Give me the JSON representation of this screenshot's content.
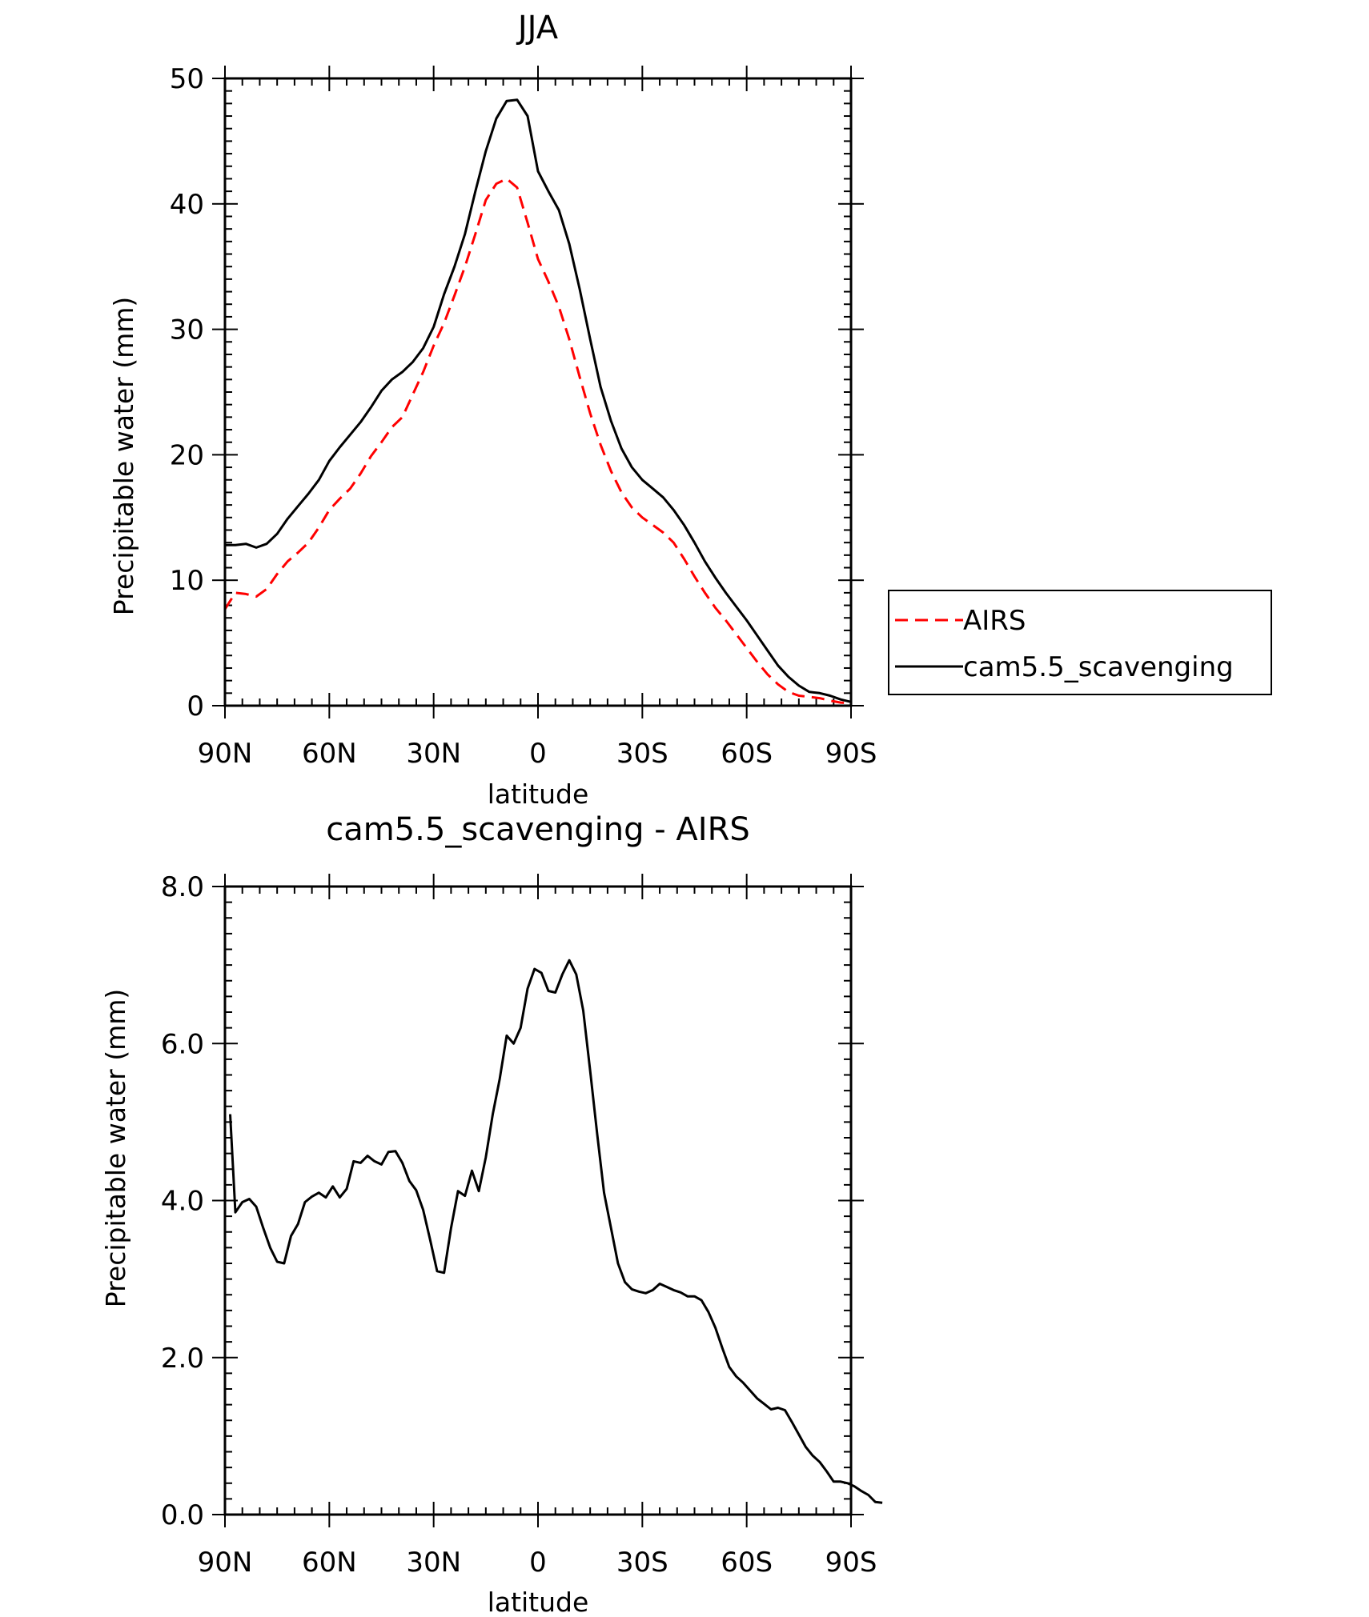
{
  "chart_data": [
    {
      "type": "line",
      "title": "JJA",
      "xlabel": "latitude",
      "ylabel": "Precipitable water (mm)",
      "xlim": [
        90,
        -90
      ],
      "ylim": [
        0,
        50
      ],
      "x_ticks": [
        {
          "value": 90,
          "label": "90N"
        },
        {
          "value": 60,
          "label": "60N"
        },
        {
          "value": 30,
          "label": "30N"
        },
        {
          "value": 0,
          "label": "0"
        },
        {
          "value": -30,
          "label": "30S"
        },
        {
          "value": -60,
          "label": "60S"
        },
        {
          "value": -90,
          "label": "90S"
        }
      ],
      "y_ticks": [
        {
          "value": 0,
          "label": "0"
        },
        {
          "value": 10,
          "label": "10"
        },
        {
          "value": 20,
          "label": "20"
        },
        {
          "value": 30,
          "label": "30"
        },
        {
          "value": 40,
          "label": "40"
        },
        {
          "value": 50,
          "label": "50"
        }
      ],
      "legend": {
        "position": "right"
      },
      "series": [
        {
          "name": "AIRS",
          "color": "#ff0000",
          "style": "dashed",
          "points": [
            [
              90,
              7.7
            ],
            [
              87,
              9.0
            ],
            [
              84,
              8.9
            ],
            [
              81,
              8.7
            ],
            [
              78,
              9.3
            ],
            [
              75,
              10.5
            ],
            [
              72,
              11.5
            ],
            [
              69,
              12.2
            ],
            [
              66,
              13.0
            ],
            [
              63,
              14.2
            ],
            [
              60,
              15.6
            ],
            [
              57,
              16.5
            ],
            [
              54,
              17.3
            ],
            [
              51,
              18.5
            ],
            [
              48,
              19.9
            ],
            [
              45,
              21.0
            ],
            [
              42,
              22.2
            ],
            [
              39,
              23.0
            ],
            [
              36,
              24.8
            ],
            [
              33,
              26.6
            ],
            [
              30,
              28.7
            ],
            [
              27,
              30.5
            ],
            [
              24,
              32.7
            ],
            [
              21,
              35.0
            ],
            [
              18,
              37.6
            ],
            [
              15,
              40.3
            ],
            [
              12,
              41.6
            ],
            [
              9,
              42.0
            ],
            [
              6,
              41.3
            ],
            [
              3,
              38.5
            ],
            [
              0,
              35.6
            ],
            [
              -3,
              33.8
            ],
            [
              -6,
              31.8
            ],
            [
              -9,
              29.2
            ],
            [
              -12,
              26.2
            ],
            [
              -15,
              23.3
            ],
            [
              -18,
              20.8
            ],
            [
              -21,
              18.7
            ],
            [
              -24,
              17.0
            ],
            [
              -27,
              15.8
            ],
            [
              -30,
              15.0
            ],
            [
              -33,
              14.4
            ],
            [
              -36,
              13.8
            ],
            [
              -39,
              13.0
            ],
            [
              -42,
              11.7
            ],
            [
              -45,
              10.3
            ],
            [
              -48,
              9.0
            ],
            [
              -51,
              7.8
            ],
            [
              -54,
              6.8
            ],
            [
              -57,
              5.7
            ],
            [
              -60,
              4.6
            ],
            [
              -63,
              3.5
            ],
            [
              -66,
              2.5
            ],
            [
              -69,
              1.7
            ],
            [
              -72,
              1.1
            ],
            [
              -75,
              0.8
            ],
            [
              -78,
              0.7
            ],
            [
              -81,
              0.6
            ],
            [
              -84,
              0.4
            ],
            [
              -87,
              0.25
            ],
            [
              -90,
              0.2
            ]
          ]
        },
        {
          "name": "cam5.5_scavenging",
          "color": "#000000",
          "style": "solid",
          "points": [
            [
              90,
              12.8
            ],
            [
              87,
              12.8
            ],
            [
              84,
              12.9
            ],
            [
              81,
              12.6
            ],
            [
              78,
              12.9
            ],
            [
              75,
              13.7
            ],
            [
              72,
              14.9
            ],
            [
              69,
              15.9
            ],
            [
              66,
              16.9
            ],
            [
              63,
              18.0
            ],
            [
              60,
              19.5
            ],
            [
              57,
              20.6
            ],
            [
              54,
              21.6
            ],
            [
              51,
              22.6
            ],
            [
              48,
              23.8
            ],
            [
              45,
              25.1
            ],
            [
              42,
              26.0
            ],
            [
              39,
              26.6
            ],
            [
              36,
              27.4
            ],
            [
              33,
              28.5
            ],
            [
              30,
              30.2
            ],
            [
              27,
              32.8
            ],
            [
              24,
              35.0
            ],
            [
              21,
              37.6
            ],
            [
              18,
              41.0
            ],
            [
              15,
              44.2
            ],
            [
              12,
              46.8
            ],
            [
              9,
              48.2
            ],
            [
              6,
              48.3
            ],
            [
              3,
              47.0
            ],
            [
              0,
              42.6
            ],
            [
              -3,
              41.0
            ],
            [
              -6,
              39.5
            ],
            [
              -9,
              36.8
            ],
            [
              -12,
              33.2
            ],
            [
              -15,
              29.2
            ],
            [
              -18,
              25.4
            ],
            [
              -21,
              22.7
            ],
            [
              -24,
              20.5
            ],
            [
              -27,
              19.0
            ],
            [
              -30,
              18.0
            ],
            [
              -33,
              17.3
            ],
            [
              -36,
              16.6
            ],
            [
              -39,
              15.6
            ],
            [
              -42,
              14.4
            ],
            [
              -45,
              13.0
            ],
            [
              -48,
              11.5
            ],
            [
              -51,
              10.2
            ],
            [
              -54,
              9.0
            ],
            [
              -57,
              7.9
            ],
            [
              -60,
              6.8
            ],
            [
              -63,
              5.6
            ],
            [
              -66,
              4.4
            ],
            [
              -69,
              3.2
            ],
            [
              -72,
              2.3
            ],
            [
              -75,
              1.6
            ],
            [
              -78,
              1.1
            ],
            [
              -81,
              1.0
            ],
            [
              -84,
              0.8
            ],
            [
              -87,
              0.5
            ],
            [
              -90,
              0.3
            ]
          ]
        }
      ]
    },
    {
      "type": "line",
      "title": "cam5.5_scavenging - AIRS",
      "xlabel": "latitude",
      "ylabel": "Precipitable water (mm)",
      "xlim": [
        90,
        -90
      ],
      "ylim": [
        0,
        8
      ],
      "x_ticks": [
        {
          "value": 90,
          "label": "90N"
        },
        {
          "value": 60,
          "label": "60N"
        },
        {
          "value": 30,
          "label": "30N"
        },
        {
          "value": 0,
          "label": "0"
        },
        {
          "value": -30,
          "label": "30S"
        },
        {
          "value": -60,
          "label": "60S"
        },
        {
          "value": -90,
          "label": "90S"
        }
      ],
      "y_ticks": [
        {
          "value": 0,
          "label": "0.0"
        },
        {
          "value": 2,
          "label": "2.0"
        },
        {
          "value": 4,
          "label": "4.0"
        },
        {
          "value": 6,
          "label": "6.0"
        },
        {
          "value": 8,
          "label": "8.0"
        }
      ],
      "series": [
        {
          "color": "#000000",
          "style": "solid",
          "points": [
            [
              88.5,
              5.1
            ],
            [
              87,
              3.85
            ],
            [
              85,
              3.98
            ],
            [
              83,
              4.02
            ],
            [
              81,
              3.92
            ],
            [
              79,
              3.65
            ],
            [
              77,
              3.4
            ],
            [
              75,
              3.22
            ],
            [
              73,
              3.2
            ],
            [
              71,
              3.55
            ],
            [
              69,
              3.7
            ],
            [
              67,
              3.98
            ],
            [
              65,
              4.05
            ],
            [
              63,
              4.1
            ],
            [
              61,
              4.04
            ],
            [
              59,
              4.18
            ],
            [
              57,
              4.04
            ],
            [
              55,
              4.15
            ],
            [
              53,
              4.5
            ],
            [
              51,
              4.48
            ],
            [
              49,
              4.57
            ],
            [
              47,
              4.5
            ],
            [
              45,
              4.46
            ],
            [
              43,
              4.62
            ],
            [
              41,
              4.63
            ],
            [
              39,
              4.48
            ],
            [
              37,
              4.25
            ],
            [
              35,
              4.13
            ],
            [
              33,
              3.88
            ],
            [
              31,
              3.5
            ],
            [
              29,
              3.1
            ],
            [
              27,
              3.08
            ],
            [
              25,
              3.65
            ],
            [
              23,
              4.12
            ],
            [
              21,
              4.06
            ],
            [
              19,
              4.38
            ],
            [
              17,
              4.12
            ],
            [
              15,
              4.55
            ],
            [
              13,
              5.1
            ],
            [
              11,
              5.55
            ],
            [
              9,
              6.1
            ],
            [
              7,
              6.0
            ],
            [
              5,
              6.2
            ],
            [
              3,
              6.7
            ],
            [
              1,
              6.95
            ],
            [
              -1,
              6.9
            ],
            [
              -3,
              6.67
            ],
            [
              -5,
              6.65
            ],
            [
              -7,
              6.88
            ],
            [
              -9,
              7.06
            ],
            [
              -11,
              6.88
            ],
            [
              -13,
              6.42
            ],
            [
              -15,
              5.65
            ],
            [
              -17,
              4.85
            ],
            [
              -19,
              4.1
            ],
            [
              -21,
              3.65
            ],
            [
              -23,
              3.2
            ],
            [
              -25,
              2.96
            ],
            [
              -27,
              2.87
            ],
            [
              -29,
              2.84
            ],
            [
              -31,
              2.82
            ],
            [
              -33,
              2.86
            ],
            [
              -35,
              2.94
            ],
            [
              -37,
              2.9
            ],
            [
              -39,
              2.86
            ],
            [
              -41,
              2.83
            ],
            [
              -43,
              2.78
            ],
            [
              -45,
              2.78
            ],
            [
              -47,
              2.73
            ],
            [
              -49,
              2.58
            ],
            [
              -51,
              2.38
            ],
            [
              -53,
              2.12
            ],
            [
              -55,
              1.88
            ],
            [
              -57,
              1.76
            ],
            [
              -59,
              1.68
            ],
            [
              -61,
              1.58
            ],
            [
              -63,
              1.48
            ],
            [
              -65,
              1.41
            ],
            [
              -67,
              1.34
            ],
            [
              -69,
              1.36
            ],
            [
              -71,
              1.33
            ],
            [
              -73,
              1.18
            ],
            [
              -75,
              1.02
            ],
            [
              -77,
              0.86
            ],
            [
              -79,
              0.75
            ],
            [
              -81,
              0.67
            ],
            [
              -83,
              0.55
            ],
            [
              -85,
              0.42
            ],
            [
              -87,
              0.42
            ],
            [
              -89,
              0.4
            ],
            [
              -91,
              0.36
            ],
            [
              -93,
              0.3
            ],
            [
              -95,
              0.25
            ],
            [
              -97,
              0.16
            ],
            [
              -99,
              0.15
            ]
          ]
        }
      ]
    }
  ]
}
